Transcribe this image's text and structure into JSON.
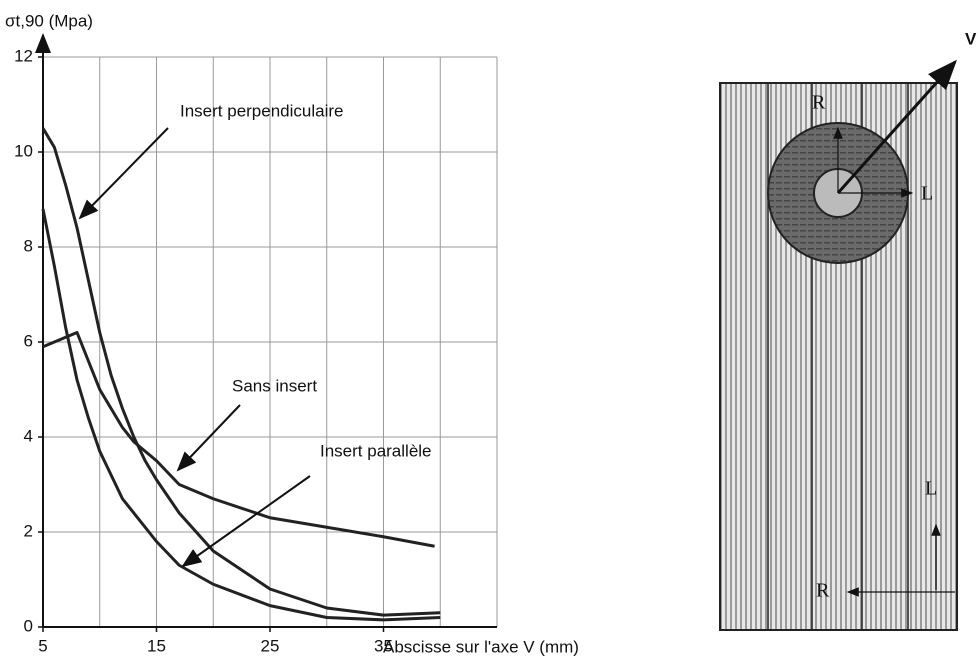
{
  "chart_data": {
    "type": "line",
    "y_label": "σt,90 (Mpa)",
    "x_label": "Abscisse sur l'axe V (mm)",
    "xlim": [
      5,
      45
    ],
    "ylim": [
      0,
      12
    ],
    "xticks": [
      5,
      15,
      25,
      35
    ],
    "xgrid": [
      10,
      15,
      20,
      25,
      30,
      35,
      40,
      45
    ],
    "yticks": [
      0,
      2,
      4,
      6,
      8,
      10,
      12
    ],
    "grid": true,
    "series": [
      {
        "name": "Insert perpendiculaire",
        "color": "#222222",
        "x": [
          5,
          6,
          7,
          8,
          9,
          10,
          11,
          12,
          13,
          14,
          15,
          17,
          20,
          25,
          30,
          35,
          40
        ],
        "values": [
          10.5,
          10.1,
          9.3,
          8.4,
          7.3,
          6.2,
          5.3,
          4.6,
          4.0,
          3.5,
          3.1,
          2.4,
          1.6,
          0.8,
          0.4,
          0.25,
          0.3
        ]
      },
      {
        "name": "Sans insert",
        "color": "#222222",
        "x": [
          5,
          7,
          8,
          9,
          10,
          11,
          12,
          13,
          15,
          17,
          20,
          25,
          30,
          35,
          39.5
        ],
        "values": [
          5.9,
          6.1,
          6.2,
          5.6,
          5.0,
          4.6,
          4.2,
          3.9,
          3.5,
          3.0,
          2.7,
          2.3,
          2.1,
          1.9,
          1.7
        ]
      },
      {
        "name": "Insert parallèle",
        "color": "#222222",
        "x": [
          5,
          6,
          7,
          8,
          9,
          10,
          12,
          15,
          17,
          20,
          25,
          30,
          35,
          40
        ],
        "values": [
          8.8,
          7.6,
          6.3,
          5.2,
          4.4,
          3.7,
          2.7,
          1.8,
          1.3,
          0.9,
          0.45,
          0.2,
          0.15,
          0.2
        ]
      }
    ]
  },
  "diagram": {
    "labels": [
      "V",
      "R",
      "L",
      "L",
      "R"
    ]
  }
}
